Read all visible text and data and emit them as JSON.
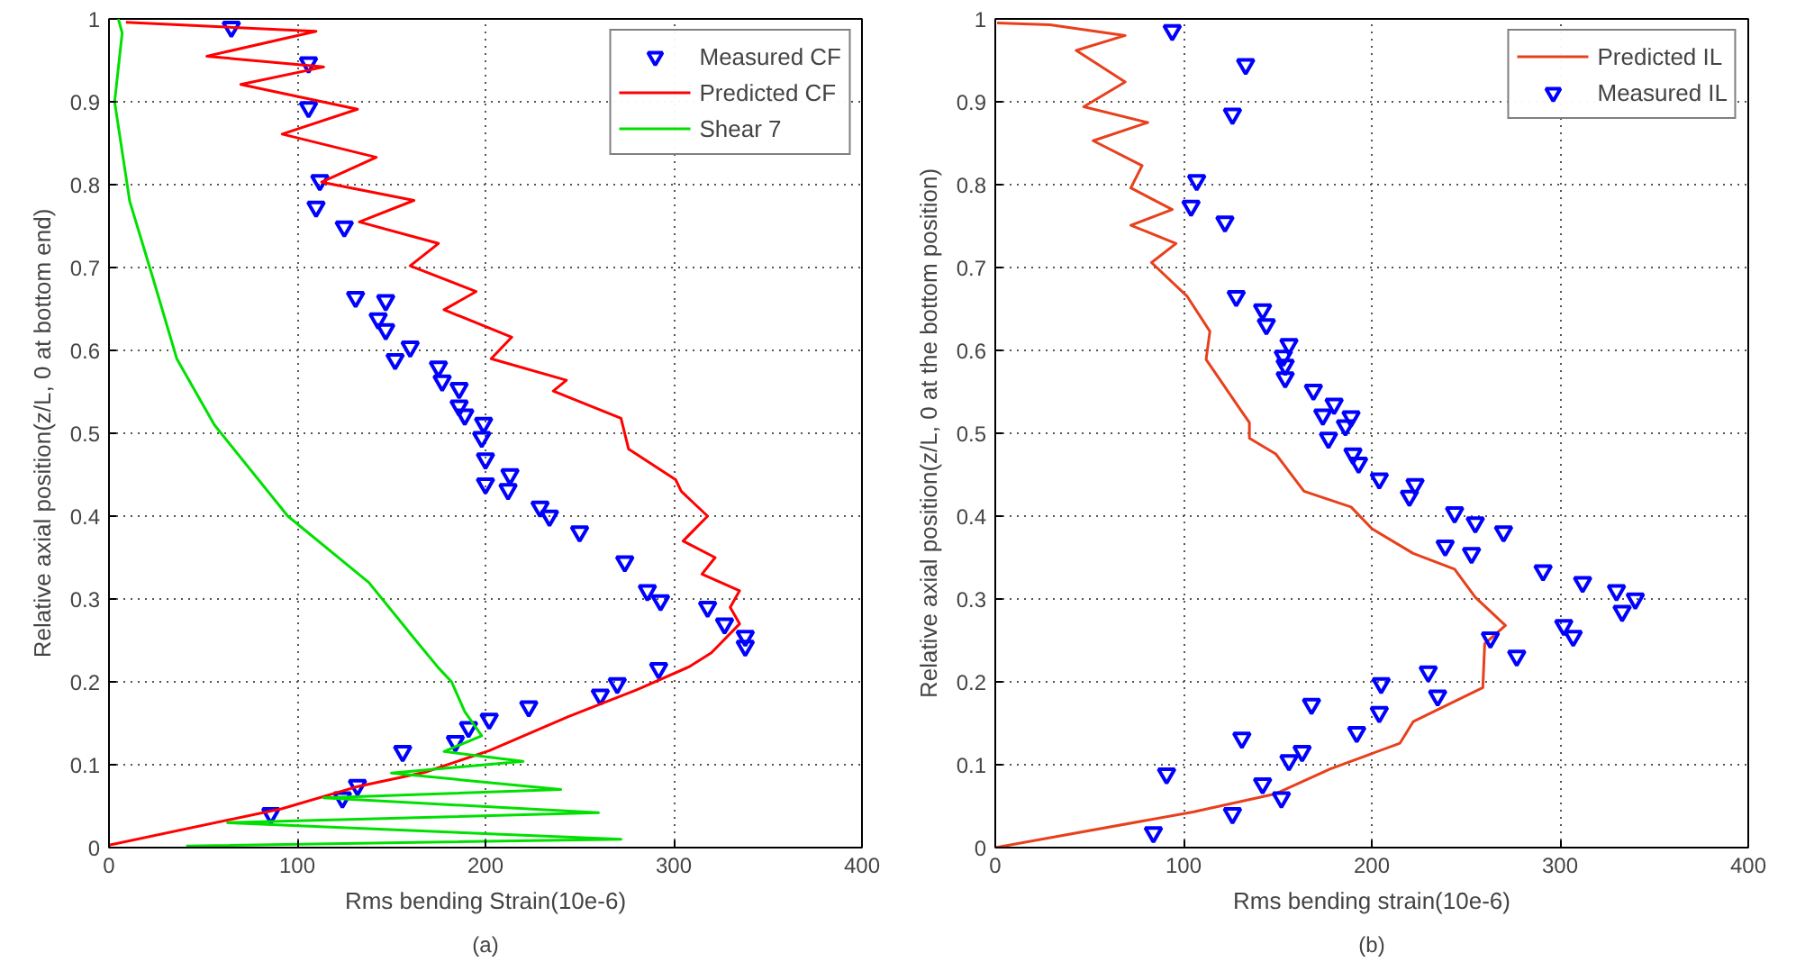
{
  "chart_data": [
    {
      "type": "line",
      "xlabel": "Rms bending Strain(10e-6)",
      "ylabel": "Relative axial position(z/L, 0 at bottom end)",
      "annotations": [
        "(a)"
      ],
      "xlim": [
        0,
        400
      ],
      "ylim": [
        0,
        1
      ],
      "xticks": [
        0,
        100,
        200,
        300,
        400
      ],
      "yticks": [
        0,
        0.1,
        0.2,
        0.3,
        0.4,
        0.5,
        0.6,
        0.7,
        0.8,
        0.9,
        1
      ],
      "grid": true,
      "legend": "top right",
      "series": [
        {
          "name": "Measured CF",
          "type": "scatter",
          "marker": "triangle",
          "color": "#0000ff",
          "x": [
            65,
            106,
            106,
            112,
            110,
            125,
            131,
            147,
            143,
            147,
            160,
            152,
            175,
            177,
            186,
            186,
            189,
            199,
            198,
            200,
            213,
            200,
            212,
            229,
            234,
            250,
            274,
            286,
            293,
            318,
            327,
            338,
            338,
            292,
            270,
            261,
            223,
            202,
            191,
            184,
            156,
            132,
            124,
            86
          ],
          "values": [
            0.99,
            0.947,
            0.893,
            0.805,
            0.773,
            0.749,
            0.664,
            0.66,
            0.638,
            0.625,
            0.604,
            0.589,
            0.58,
            0.563,
            0.554,
            0.533,
            0.522,
            0.512,
            0.495,
            0.469,
            0.45,
            0.439,
            0.432,
            0.411,
            0.4,
            0.381,
            0.345,
            0.31,
            0.298,
            0.29,
            0.27,
            0.255,
            0.243,
            0.216,
            0.198,
            0.184,
            0.17,
            0.155,
            0.145,
            0.128,
            0.116,
            0.075,
            0.06,
            0.041
          ]
        },
        {
          "name": "Predicted CF",
          "color": "#ff0000",
          "x": [
            9,
            110,
            52,
            114,
            70,
            132,
            92,
            142,
            113,
            162,
            133,
            175,
            160,
            195,
            178,
            214,
            203,
            243,
            236,
            272,
            276,
            301,
            304,
            318,
            305,
            322,
            315,
            335,
            330,
            335,
            320,
            308,
            280,
            244,
            202,
            168,
            131,
            92,
            0
          ],
          "values": [
            0.996,
            0.985,
            0.955,
            0.942,
            0.921,
            0.891,
            0.861,
            0.833,
            0.803,
            0.781,
            0.755,
            0.729,
            0.702,
            0.671,
            0.649,
            0.616,
            0.59,
            0.564,
            0.551,
            0.518,
            0.481,
            0.444,
            0.43,
            0.4,
            0.37,
            0.35,
            0.33,
            0.31,
            0.29,
            0.27,
            0.235,
            0.218,
            0.19,
            0.158,
            0.117,
            0.091,
            0.073,
            0.047,
            0.003
          ]
        },
        {
          "name": "Shear 7",
          "color": "#00e000",
          "x": [
            5,
            7,
            3,
            11,
            23,
            36,
            56,
            95,
            138,
            163,
            175,
            182,
            189,
            198,
            178,
            220,
            150,
            240,
            114,
            260,
            63,
            272,
            41
          ],
          "values": [
            1.0,
            0.983,
            0.9,
            0.78,
            0.69,
            0.59,
            0.51,
            0.4,
            0.32,
            0.25,
            0.217,
            0.2,
            0.164,
            0.135,
            0.116,
            0.104,
            0.09,
            0.07,
            0.06,
            0.042,
            0.03,
            0.01,
            0.002
          ]
        }
      ]
    },
    {
      "type": "line",
      "xlabel": "Rms bending strain(10e-6)",
      "ylabel": "Relative axial position(z/L, 0 at the bottom position)",
      "annotations": [
        "(b)"
      ],
      "xlim": [
        0,
        400
      ],
      "ylim": [
        0,
        1
      ],
      "xticks": [
        0,
        100,
        200,
        300,
        400
      ],
      "yticks": [
        0,
        0.1,
        0.2,
        0.3,
        0.4,
        0.5,
        0.6,
        0.7,
        0.8,
        0.9,
        1
      ],
      "grid": true,
      "legend": "top right",
      "series": [
        {
          "name": "Predicted IL",
          "color": "#e8401c",
          "x": [
            1,
            29,
            69,
            43,
            69,
            47,
            81,
            52,
            78,
            72,
            94,
            72,
            96,
            83,
            102,
            114,
            112,
            131,
            135,
            135,
            149,
            164,
            189,
            200,
            222,
            244,
            255,
            271,
            260,
            259,
            222,
            215,
            178,
            149,
            105,
            0
          ],
          "values": [
            0.995,
            0.993,
            0.98,
            0.962,
            0.924,
            0.894,
            0.875,
            0.853,
            0.823,
            0.796,
            0.77,
            0.751,
            0.729,
            0.706,
            0.665,
            0.623,
            0.589,
            0.526,
            0.513,
            0.494,
            0.475,
            0.43,
            0.411,
            0.385,
            0.355,
            0.336,
            0.302,
            0.268,
            0.246,
            0.193,
            0.152,
            0.126,
            0.095,
            0.065,
            0.043,
            0.0
          ]
        },
        {
          "name": "Measured IL",
          "type": "scatter",
          "marker": "triangle",
          "color": "#0000ff",
          "x": [
            94,
            133,
            126,
            107,
            104,
            122,
            128,
            142,
            144,
            156,
            153,
            154,
            154,
            169,
            180,
            189,
            174,
            186,
            177,
            190,
            193,
            204,
            223,
            220,
            244,
            255,
            270,
            239,
            253,
            291,
            312,
            330,
            340,
            333,
            302,
            307,
            263,
            277,
            230,
            205,
            235,
            168,
            204,
            192,
            131,
            163,
            156,
            91,
            142,
            152,
            126,
            84
          ],
          "values": [
            0.986,
            0.945,
            0.885,
            0.805,
            0.774,
            0.755,
            0.665,
            0.649,
            0.631,
            0.607,
            0.593,
            0.582,
            0.567,
            0.552,
            0.535,
            0.52,
            0.522,
            0.509,
            0.494,
            0.475,
            0.464,
            0.445,
            0.438,
            0.424,
            0.404,
            0.392,
            0.381,
            0.364,
            0.355,
            0.334,
            0.32,
            0.31,
            0.3,
            0.285,
            0.268,
            0.255,
            0.253,
            0.231,
            0.212,
            0.198,
            0.183,
            0.173,
            0.163,
            0.139,
            0.132,
            0.116,
            0.105,
            0.089,
            0.077,
            0.06,
            0.041,
            0.018
          ]
        }
      ]
    }
  ]
}
